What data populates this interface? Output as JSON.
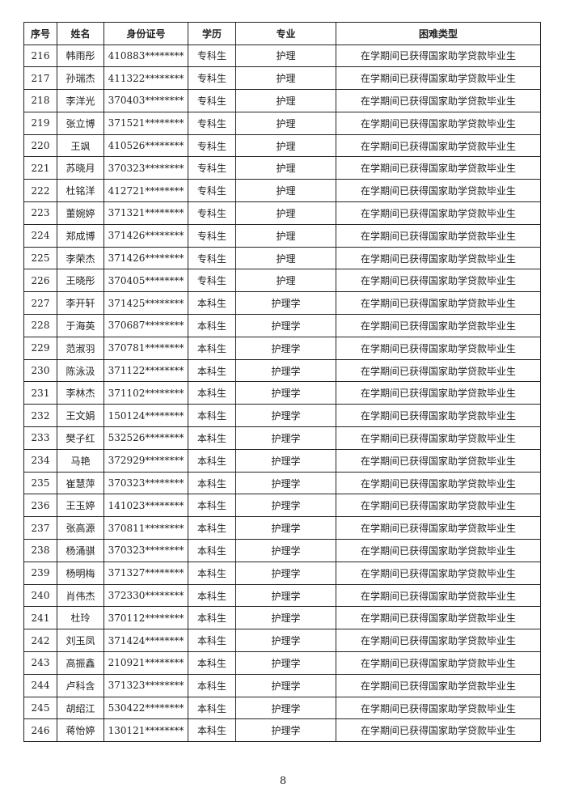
{
  "table": {
    "headers": [
      "序号",
      "姓名",
      "身份证号",
      "学历",
      "专业",
      "困难类型"
    ],
    "rows": [
      [
        "216",
        "韩雨彤",
        "410883********",
        "专科生",
        "护理",
        "在学期间已获得国家助学贷款毕业生"
      ],
      [
        "217",
        "孙瑞杰",
        "411322********",
        "专科生",
        "护理",
        "在学期间已获得国家助学贷款毕业生"
      ],
      [
        "218",
        "李洋光",
        "370403********",
        "专科生",
        "护理",
        "在学期间已获得国家助学贷款毕业生"
      ],
      [
        "219",
        "张立博",
        "371521********",
        "专科生",
        "护理",
        "在学期间已获得国家助学贷款毕业生"
      ],
      [
        "220",
        "王飒",
        "410526********",
        "专科生",
        "护理",
        "在学期间已获得国家助学贷款毕业生"
      ],
      [
        "221",
        "苏晓月",
        "370323********",
        "专科生",
        "护理",
        "在学期间已获得国家助学贷款毕业生"
      ],
      [
        "222",
        "杜铭洋",
        "412721********",
        "专科生",
        "护理",
        "在学期间已获得国家助学贷款毕业生"
      ],
      [
        "223",
        "董婉婷",
        "371321********",
        "专科生",
        "护理",
        "在学期间已获得国家助学贷款毕业生"
      ],
      [
        "224",
        "郑成博",
        "371426********",
        "专科生",
        "护理",
        "在学期间已获得国家助学贷款毕业生"
      ],
      [
        "225",
        "李荣杰",
        "371426********",
        "专科生",
        "护理",
        "在学期间已获得国家助学贷款毕业生"
      ],
      [
        "226",
        "王晓彤",
        "370405********",
        "专科生",
        "护理",
        "在学期间已获得国家助学贷款毕业生"
      ],
      [
        "227",
        "李开轩",
        "371425********",
        "本科生",
        "护理学",
        "在学期间已获得国家助学贷款毕业生"
      ],
      [
        "228",
        "于海英",
        "370687********",
        "本科生",
        "护理学",
        "在学期间已获得国家助学贷款毕业生"
      ],
      [
        "229",
        "范淑羽",
        "370781********",
        "本科生",
        "护理学",
        "在学期间已获得国家助学贷款毕业生"
      ],
      [
        "230",
        "陈泳汲",
        "371122********",
        "本科生",
        "护理学",
        "在学期间已获得国家助学贷款毕业生"
      ],
      [
        "231",
        "李林杰",
        "371102********",
        "本科生",
        "护理学",
        "在学期间已获得国家助学贷款毕业生"
      ],
      [
        "232",
        "王文娟",
        "150124********",
        "本科生",
        "护理学",
        "在学期间已获得国家助学贷款毕业生"
      ],
      [
        "233",
        "樊子红",
        "532526********",
        "本科生",
        "护理学",
        "在学期间已获得国家助学贷款毕业生"
      ],
      [
        "234",
        "马艳",
        "372929********",
        "本科生",
        "护理学",
        "在学期间已获得国家助学贷款毕业生"
      ],
      [
        "235",
        "崔慧萍",
        "370323********",
        "本科生",
        "护理学",
        "在学期间已获得国家助学贷款毕业生"
      ],
      [
        "236",
        "王玉婷",
        "141023********",
        "本科生",
        "护理学",
        "在学期间已获得国家助学贷款毕业生"
      ],
      [
        "237",
        "张高源",
        "370811********",
        "本科生",
        "护理学",
        "在学期间已获得国家助学贷款毕业生"
      ],
      [
        "238",
        "杨涌骐",
        "370323********",
        "本科生",
        "护理学",
        "在学期间已获得国家助学贷款毕业生"
      ],
      [
        "239",
        "杨明梅",
        "371327********",
        "本科生",
        "护理学",
        "在学期间已获得国家助学贷款毕业生"
      ],
      [
        "240",
        "肖伟杰",
        "372330********",
        "本科生",
        "护理学",
        "在学期间已获得国家助学贷款毕业生"
      ],
      [
        "241",
        "杜玲",
        "370112********",
        "本科生",
        "护理学",
        "在学期间已获得国家助学贷款毕业生"
      ],
      [
        "242",
        "刘玉凤",
        "371424********",
        "本科生",
        "护理学",
        "在学期间已获得国家助学贷款毕业生"
      ],
      [
        "243",
        "高振鑫",
        "210921********",
        "本科生",
        "护理学",
        "在学期间已获得国家助学贷款毕业生"
      ],
      [
        "244",
        "卢科含",
        "371323********",
        "本科生",
        "护理学",
        "在学期间已获得国家助学贷款毕业生"
      ],
      [
        "245",
        "胡绍江",
        "530422********",
        "本科生",
        "护理学",
        "在学期间已获得国家助学贷款毕业生"
      ],
      [
        "246",
        "蒋怡婷",
        "130121********",
        "本科生",
        "护理学",
        "在学期间已获得国家助学贷款毕业生"
      ]
    ]
  },
  "page_number": "8"
}
